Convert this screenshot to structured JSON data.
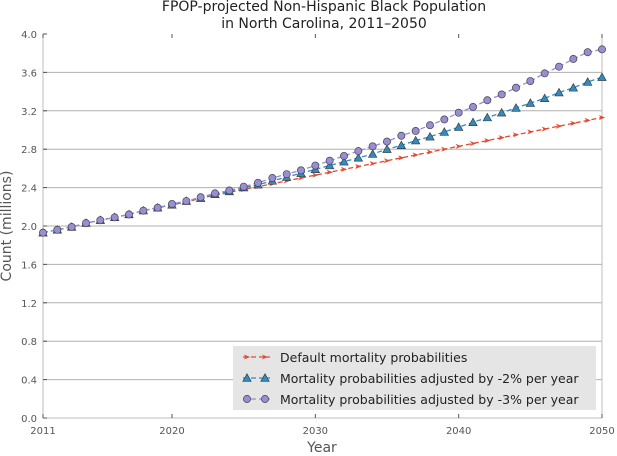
{
  "chart_data": {
    "type": "line",
    "title": "FPOP-projected Non-Hispanic Black Population\nin North Carolina, 2011–2050",
    "xlabel": "Year",
    "ylabel": "Count (millions)",
    "xlim": [
      2011,
      2050
    ],
    "ylim": [
      0.0,
      4.0
    ],
    "x_ticks": [
      2011,
      2020,
      2030,
      2040,
      2050
    ],
    "x_tick_labels": [
      "2011",
      "2020",
      "2030",
      "2040",
      "2050"
    ],
    "y_ticks": [
      0.0,
      0.4,
      0.8,
      1.2,
      1.6,
      2.0,
      2.4,
      2.8,
      3.2,
      3.6,
      4.0
    ],
    "y_tick_labels": [
      "0.0",
      "0.4",
      "0.8",
      "1.2",
      "1.6",
      "2.0",
      "2.4",
      "2.8",
      "3.2",
      "3.6",
      "4.0"
    ],
    "grid": "horizontal",
    "legend_position": "bottom-right",
    "x": [
      2011,
      2012,
      2013,
      2014,
      2015,
      2016,
      2017,
      2018,
      2019,
      2020,
      2021,
      2022,
      2023,
      2024,
      2025,
      2026,
      2027,
      2028,
      2029,
      2030,
      2031,
      2032,
      2033,
      2034,
      2035,
      2036,
      2037,
      2038,
      2039,
      2040,
      2041,
      2042,
      2043,
      2044,
      2045,
      2046,
      2047,
      2048,
      2049,
      2050
    ],
    "series": [
      {
        "name": "Default mortality probabilities",
        "marker": "arrow",
        "color": "#e24a33",
        "values": [
          1.93,
          1.96,
          1.99,
          2.03,
          2.06,
          2.09,
          2.12,
          2.16,
          2.19,
          2.22,
          2.25,
          2.29,
          2.32,
          2.35,
          2.38,
          2.41,
          2.44,
          2.47,
          2.5,
          2.53,
          2.56,
          2.59,
          2.62,
          2.65,
          2.68,
          2.71,
          2.74,
          2.77,
          2.8,
          2.83,
          2.86,
          2.89,
          2.92,
          2.95,
          2.98,
          3.01,
          3.04,
          3.07,
          3.1,
          3.13
        ]
      },
      {
        "name": "Mortality probabilities adjusted by -2% per year",
        "marker": "triangle",
        "color": "#348abd",
        "values": [
          1.93,
          1.96,
          1.99,
          2.03,
          2.06,
          2.09,
          2.12,
          2.16,
          2.19,
          2.22,
          2.26,
          2.29,
          2.33,
          2.36,
          2.4,
          2.43,
          2.47,
          2.51,
          2.55,
          2.59,
          2.63,
          2.67,
          2.71,
          2.75,
          2.8,
          2.84,
          2.89,
          2.93,
          2.98,
          3.03,
          3.08,
          3.13,
          3.18,
          3.23,
          3.28,
          3.33,
          3.39,
          3.44,
          3.5,
          3.55
        ]
      },
      {
        "name": "Mortality probabilities adjusted by -3% per year",
        "marker": "circle",
        "color": "#988ed5",
        "values": [
          1.93,
          1.96,
          1.99,
          2.03,
          2.06,
          2.09,
          2.12,
          2.16,
          2.19,
          2.23,
          2.26,
          2.3,
          2.34,
          2.37,
          2.41,
          2.45,
          2.5,
          2.54,
          2.58,
          2.63,
          2.68,
          2.73,
          2.78,
          2.83,
          2.88,
          2.94,
          2.99,
          3.05,
          3.11,
          3.18,
          3.24,
          3.31,
          3.37,
          3.44,
          3.51,
          3.59,
          3.66,
          3.74,
          3.81,
          3.84
        ]
      }
    ]
  }
}
